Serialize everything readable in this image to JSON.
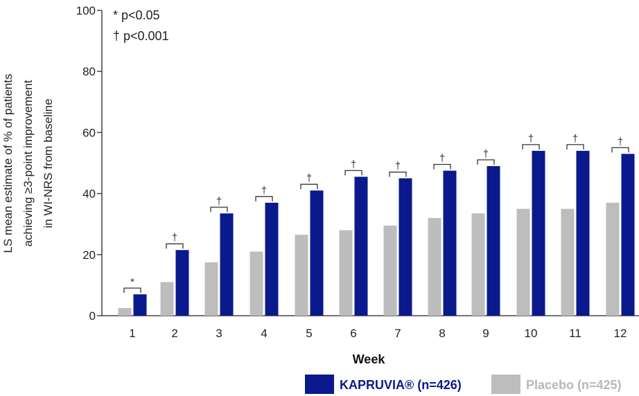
{
  "chart_data": {
    "type": "bar",
    "xlabel": "Week",
    "ylabel_lines": [
      "LS mean estimate of % of patients",
      "achieving ≥3-point improvement",
      "in WI-NRS from baseline"
    ],
    "ylim": [
      0,
      100
    ],
    "yticks": [
      "0",
      "20",
      "40",
      "60",
      "80",
      "100"
    ],
    "categories": [
      "1",
      "2",
      "3",
      "4",
      "5",
      "6",
      "7",
      "8",
      "9",
      "10",
      "11",
      "12"
    ],
    "series": [
      {
        "name": "Placebo (n=425)",
        "color": "#bdbdbd",
        "values": [
          2.5,
          11,
          17.5,
          21,
          26.5,
          28,
          29.5,
          32,
          33.5,
          35,
          35,
          37
        ]
      },
      {
        "name": "KAPRUVIA® (n=426)",
        "color": "#0a1a8c",
        "values": [
          7,
          21.5,
          33.5,
          37,
          41,
          45.5,
          45,
          47.5,
          49,
          54,
          54,
          53
        ]
      }
    ],
    "significance": [
      "*",
      "†",
      "†",
      "†",
      "†",
      "†",
      "†",
      "†",
      "†",
      "†",
      "†",
      "†"
    ],
    "notes": [
      "* p<0.05",
      "† p<0.001"
    ],
    "grid": false,
    "legend_position": "bottom-right"
  }
}
